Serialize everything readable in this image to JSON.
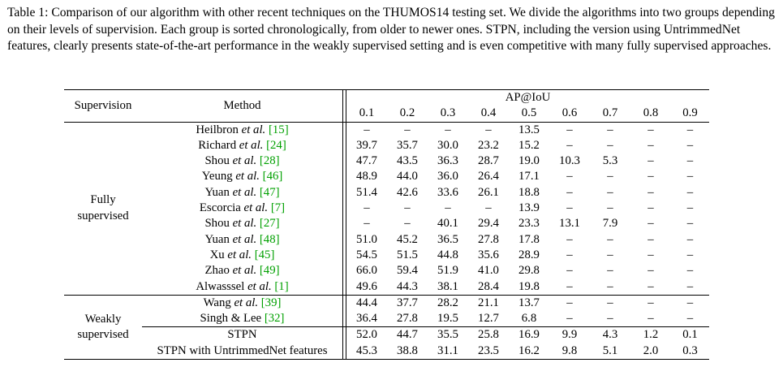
{
  "caption": "Table 1: Comparison of our algorithm with other recent techniques on the THUMOS14 testing set. We divide the algorithms into two groups depending on their levels of supervision. Each group is sorted chronologically, from older to newer ones. STPN, including the version using UntrimmedNet features, clearly presents state-of-the-art performance in the weakly supervised setting and is even competitive with many fully supervised approaches.",
  "header": {
    "supervision": "Supervision",
    "method": "Method",
    "ap_group": "AP@IoU",
    "thresholds": [
      "0.1",
      "0.2",
      "0.3",
      "0.4",
      "0.5",
      "0.6",
      "0.7",
      "0.8",
      "0.9"
    ]
  },
  "groups": [
    {
      "label_line1": "Fully",
      "label_line2": "supervised",
      "rows": [
        {
          "author": "Heilbron",
          "etal": " et al.",
          "cite": "[15]",
          "values": [
            "–",
            "–",
            "–",
            "–",
            "13.5",
            "–",
            "–",
            "–",
            "–"
          ]
        },
        {
          "author": "Richard",
          "etal": " et al.",
          "cite": "[24]",
          "values": [
            "39.7",
            "35.7",
            "30.0",
            "23.2",
            "15.2",
            "–",
            "–",
            "–",
            "–"
          ]
        },
        {
          "author": "Shou",
          "etal": " et al.",
          "cite": "[28]",
          "values": [
            "47.7",
            "43.5",
            "36.3",
            "28.7",
            "19.0",
            "10.3",
            "5.3",
            "–",
            "–"
          ]
        },
        {
          "author": "Yeung",
          "etal": " et al.",
          "cite": "[46]",
          "values": [
            "48.9",
            "44.0",
            "36.0",
            "26.4",
            "17.1",
            "–",
            "–",
            "–",
            "–"
          ]
        },
        {
          "author": "Yuan",
          "etal": " et al.",
          "cite": "[47]",
          "values": [
            "51.4",
            "42.6",
            "33.6",
            "26.1",
            "18.8",
            "–",
            "–",
            "–",
            "–"
          ]
        },
        {
          "author": "Escorcia",
          "etal": " et al.",
          "cite": "[7]",
          "values": [
            "–",
            "–",
            "–",
            "–",
            "13.9",
            "–",
            "–",
            "–",
            "–"
          ]
        },
        {
          "author": "Shou",
          "etal": " et al.",
          "cite": "[27]",
          "values": [
            "–",
            "–",
            "40.1",
            "29.4",
            "23.3",
            "13.1",
            "7.9",
            "–",
            "–"
          ]
        },
        {
          "author": "Yuan",
          "etal": " et al.",
          "cite": "[48]",
          "values": [
            "51.0",
            "45.2",
            "36.5",
            "27.8",
            "17.8",
            "–",
            "–",
            "–",
            "–"
          ]
        },
        {
          "author": "Xu",
          "etal": " et al.",
          "cite": "[45]",
          "values": [
            "54.5",
            "51.5",
            "44.8",
            "35.6",
            "28.9",
            "–",
            "–",
            "–",
            "–"
          ]
        },
        {
          "author": "Zhao",
          "etal": " et al.",
          "cite": "[49]",
          "values": [
            "66.0",
            "59.4",
            "51.9",
            "41.0",
            "29.8",
            "–",
            "–",
            "–",
            "–"
          ]
        },
        {
          "author": "Alwasssel",
          "etal": " et al.",
          "cite": "[1]",
          "values": [
            "49.6",
            "44.3",
            "38.1",
            "28.4",
            "19.8",
            "–",
            "–",
            "–",
            "–"
          ]
        }
      ]
    },
    {
      "label_line1": "Weakly",
      "label_line2": "supervised",
      "rows": [
        {
          "author": "Wang",
          "etal": " et al.",
          "cite": "[39]",
          "values": [
            "44.4",
            "37.7",
            "28.2",
            "21.1",
            "13.7",
            "–",
            "–",
            "–",
            "–"
          ]
        },
        {
          "author": "Singh & Lee",
          "etal": "",
          "cite": "[32]",
          "values": [
            "36.4",
            "27.8",
            "19.5",
            "12.7",
            "6.8",
            "–",
            "–",
            "–",
            "–"
          ]
        },
        {
          "author": "STPN",
          "etal": "",
          "cite": "",
          "values": [
            "52.0",
            "44.7",
            "35.5",
            "25.8",
            "16.9",
            "9.9",
            "4.3",
            "1.2",
            "0.1"
          ]
        },
        {
          "author": "STPN with UntrimmedNet features",
          "etal": "",
          "cite": "",
          "values": [
            "45.3",
            "38.8",
            "31.1",
            "23.5",
            "16.2",
            "9.8",
            "5.1",
            "2.0",
            "0.3"
          ]
        }
      ]
    }
  ]
}
